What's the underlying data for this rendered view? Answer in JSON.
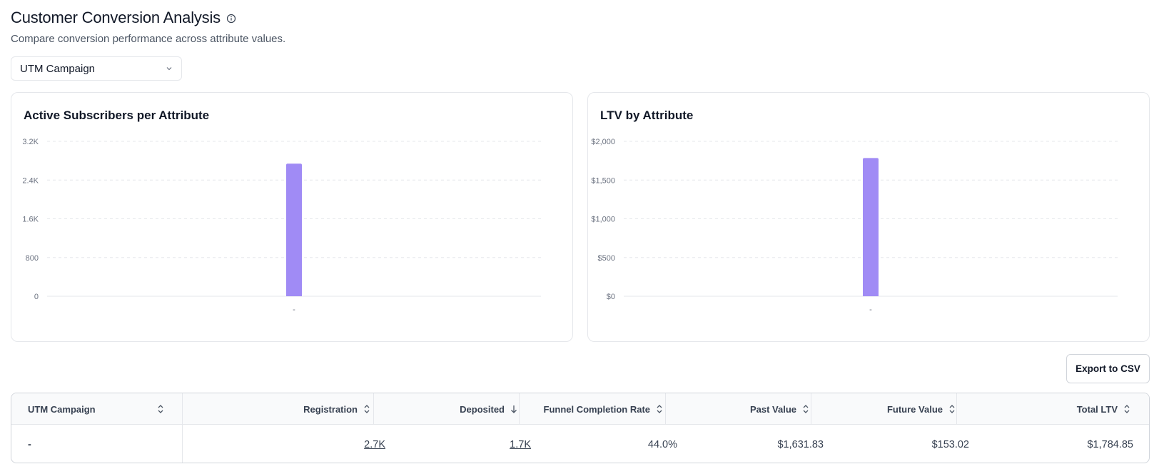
{
  "header": {
    "title": "Customer Conversion Analysis",
    "subtitle": "Compare conversion performance across attribute values."
  },
  "attribute_select": {
    "value": "UTM Campaign"
  },
  "export_button": {
    "label": "Export to CSV"
  },
  "chart_data": [
    {
      "type": "bar",
      "title": "Active Subscribers per Attribute",
      "categories": [
        "-"
      ],
      "values": [
        2740
      ],
      "ylim": [
        0,
        3200
      ],
      "yticks": [
        0,
        800,
        1600,
        2400,
        3200
      ],
      "ytick_labels": [
        "0",
        "800",
        "1.6K",
        "2.4K",
        "3.2K"
      ],
      "grid": true,
      "color": "#a08bf5"
    },
    {
      "type": "bar",
      "title": "LTV by Attribute",
      "categories": [
        "-"
      ],
      "values": [
        1784.85
      ],
      "ylim": [
        0,
        2000
      ],
      "yticks": [
        0,
        500,
        1000,
        1500,
        2000
      ],
      "ytick_labels": [
        "$0",
        "$500",
        "$1,000",
        "$1,500",
        "$2,000"
      ],
      "grid": true,
      "color": "#a08bf5"
    }
  ],
  "table": {
    "columns": [
      {
        "label": "UTM Campaign",
        "sort": "none"
      },
      {
        "label": "Registration",
        "sort": "none"
      },
      {
        "label": "Deposited",
        "sort": "desc"
      },
      {
        "label": "Funnel Completion Rate",
        "sort": "none"
      },
      {
        "label": "Past Value",
        "sort": "none"
      },
      {
        "label": "Future Value",
        "sort": "none"
      },
      {
        "label": "Total LTV",
        "sort": "none"
      }
    ],
    "rows": [
      {
        "utm_campaign": "-",
        "registration": "2.7K",
        "deposited": "1.7K",
        "funnel_completion_rate": "44.0%",
        "past_value": "$1,631.83",
        "future_value": "$153.02",
        "total_ltv": "$1,784.85"
      }
    ]
  },
  "colors": {
    "bar": "#a08bf5",
    "border": "#e5e7eb",
    "text": "#111827"
  }
}
